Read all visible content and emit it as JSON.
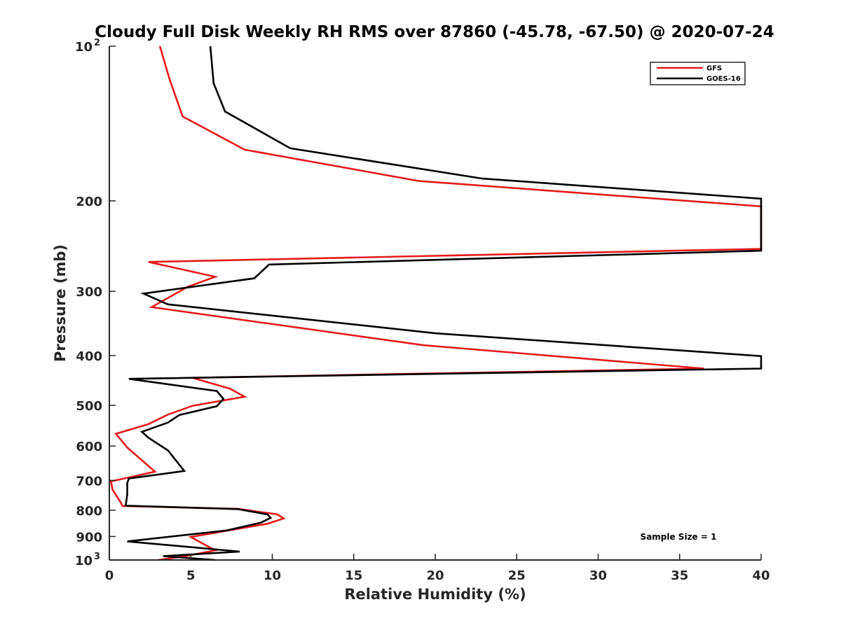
{
  "chart_data": {
    "type": "line",
    "title": "Cloudy Full Disk Weekly RH RMS over 87860 (-45.78, -67.50) @ 2020-07-24",
    "xlabel": "Relative Humidity (%)",
    "ylabel": "Pressure (mb)",
    "xlim": [
      0,
      40
    ],
    "ylim": [
      100,
      1000
    ],
    "yscale": "log",
    "y_reversed": true,
    "grid": false,
    "legend_position": "top-right",
    "x_ticks": [
      "0",
      "5",
      "10",
      "15",
      "20",
      "25",
      "30",
      "35",
      "40"
    ],
    "y_ticks": [
      {
        "value": 100,
        "label": "10",
        "exp": "2"
      },
      {
        "value": 200,
        "label": "200"
      },
      {
        "value": 300,
        "label": "300"
      },
      {
        "value": 400,
        "label": "400"
      },
      {
        "value": 500,
        "label": "500"
      },
      {
        "value": 600,
        "label": "600"
      },
      {
        "value": 700,
        "label": "700"
      },
      {
        "value": 800,
        "label": "800"
      },
      {
        "value": 900,
        "label": "900"
      },
      {
        "value": 1000,
        "label": "10",
        "exp": "3"
      }
    ],
    "annotation": "Sample Size = 1",
    "series": [
      {
        "name": "GFS",
        "color": "#e41a1c",
        "points": [
          [
            3.1,
            100
          ],
          [
            3.7,
            116
          ],
          [
            4.5,
            137
          ],
          [
            8.3,
            159
          ],
          [
            19.0,
            183
          ],
          [
            40.0,
            205
          ],
          [
            40.0,
            248
          ],
          [
            2.4,
            263
          ],
          [
            6.5,
            281
          ],
          [
            4.8,
            294
          ],
          [
            2.6,
            322
          ],
          [
            19.3,
            382
          ],
          [
            36.5,
            424
          ],
          [
            5.1,
            442
          ],
          [
            7.4,
            464
          ],
          [
            8.3,
            481
          ],
          [
            5.1,
            501
          ],
          [
            3.6,
            521
          ],
          [
            2.4,
            544
          ],
          [
            0.4,
            568
          ],
          [
            1.1,
            604
          ],
          [
            2.8,
            673
          ],
          [
            0.1,
            703
          ],
          [
            0.2,
            730
          ],
          [
            0.7,
            773
          ],
          [
            0.8,
            785
          ],
          [
            7.9,
            795
          ],
          [
            10.3,
            815
          ],
          [
            10.7,
            830
          ],
          [
            9.7,
            850
          ],
          [
            5.0,
            902
          ],
          [
            6.5,
            958
          ],
          [
            4.5,
            985
          ],
          [
            3.0,
            1000
          ]
        ]
      },
      {
        "name": "GOES-16",
        "color": "#000000",
        "points": [
          [
            6.2,
            100
          ],
          [
            6.4,
            118
          ],
          [
            7.1,
            134
          ],
          [
            11.1,
            158
          ],
          [
            22.9,
            181
          ],
          [
            40.0,
            198
          ],
          [
            40.0,
            250
          ],
          [
            9.8,
            266
          ],
          [
            8.9,
            283
          ],
          [
            2.1,
            303
          ],
          [
            3.6,
            318
          ],
          [
            20.0,
            362
          ],
          [
            40.0,
            401
          ],
          [
            40.0,
            424
          ],
          [
            1.2,
            444
          ],
          [
            6.6,
            469
          ],
          [
            7.0,
            486
          ],
          [
            6.6,
            502
          ],
          [
            4.3,
            522
          ],
          [
            3.6,
            540
          ],
          [
            2.0,
            563
          ],
          [
            2.4,
            578
          ],
          [
            3.6,
            612
          ],
          [
            4.6,
            671
          ],
          [
            1.2,
            694
          ],
          [
            1.1,
            708
          ],
          [
            1.1,
            745
          ],
          [
            1.0,
            784
          ],
          [
            7.9,
            796
          ],
          [
            9.7,
            815
          ],
          [
            9.9,
            828
          ],
          [
            9.3,
            846
          ],
          [
            7.2,
            876
          ],
          [
            1.1,
            920
          ],
          [
            8.0,
            963
          ],
          [
            3.3,
            983
          ],
          [
            6.5,
            1000
          ]
        ]
      }
    ]
  }
}
